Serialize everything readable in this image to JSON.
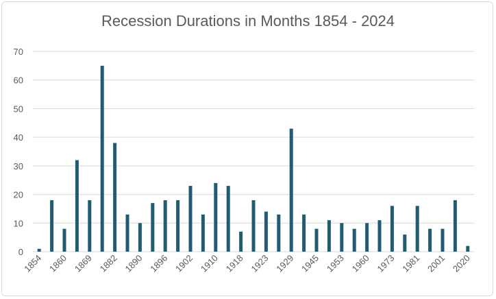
{
  "chart_data": {
    "type": "bar",
    "title": "Recession Durations in Months 1854 - 2024",
    "xlabel": "",
    "ylabel": "",
    "ylim": [
      0,
      70
    ],
    "yticks": [
      0,
      10,
      20,
      30,
      40,
      50,
      60,
      70
    ],
    "grid": true,
    "bar_color": "#1f5c73",
    "categories": [
      "1854",
      "1857",
      "1860",
      "1865",
      "1869",
      "1873",
      "1882",
      "1887",
      "1890",
      "1893",
      "1896",
      "1899",
      "1902",
      "1907",
      "1910",
      "1913",
      "1918",
      "1920",
      "1923",
      "1926",
      "1929",
      "1937",
      "1945",
      "1948",
      "1953",
      "1957",
      "1960",
      "1969",
      "1973",
      "1980",
      "1981",
      "1990",
      "2001",
      "2007",
      "2020"
    ],
    "tick_labels": [
      "1854",
      "1860",
      "1869",
      "1882",
      "1890",
      "1896",
      "1902",
      "1910",
      "1918",
      "1923",
      "1929",
      "1945",
      "1953",
      "1960",
      "1973",
      "1981",
      "2001",
      "2020"
    ],
    "values": [
      1,
      18,
      8,
      32,
      18,
      65,
      38,
      13,
      10,
      17,
      18,
      18,
      23,
      13,
      24,
      23,
      7,
      18,
      14,
      13,
      43,
      13,
      8,
      11,
      10,
      8,
      10,
      11,
      16,
      6,
      16,
      8,
      8,
      18,
      2
    ]
  }
}
